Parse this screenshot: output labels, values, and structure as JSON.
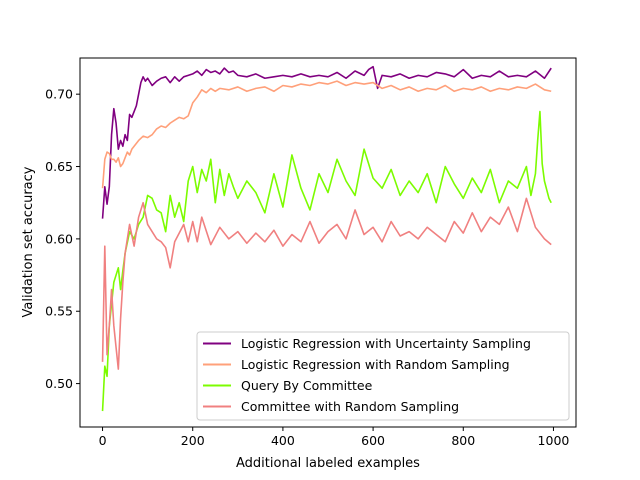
{
  "chart_data": {
    "type": "line",
    "xlabel": "Additional labeled examples",
    "ylabel": "Validation set accuracy",
    "xlim": [
      -50,
      1050
    ],
    "ylim": [
      0.47,
      0.725
    ],
    "xticks": [
      0,
      200,
      400,
      600,
      800,
      1000
    ],
    "yticks": [
      0.5,
      0.55,
      0.6,
      0.65,
      0.7
    ],
    "xtick_labels": [
      "0",
      "200",
      "400",
      "600",
      "800",
      "1000"
    ],
    "ytick_labels": [
      "0.50",
      "0.55",
      "0.60",
      "0.65",
      "0.70"
    ],
    "grid": false,
    "legend_position": "lower right",
    "series": [
      {
        "name": "Logistic Regression with Uncertainty Sampling",
        "color": "#800080",
        "x": [
          0,
          5,
          10,
          15,
          20,
          25,
          30,
          35,
          40,
          45,
          50,
          55,
          60,
          65,
          70,
          75,
          80,
          85,
          90,
          95,
          100,
          110,
          120,
          130,
          140,
          150,
          160,
          170,
          180,
          190,
          200,
          210,
          220,
          230,
          240,
          250,
          260,
          270,
          280,
          290,
          300,
          320,
          340,
          360,
          380,
          400,
          420,
          440,
          460,
          480,
          500,
          520,
          540,
          560,
          580,
          590,
          600,
          610,
          620,
          640,
          660,
          680,
          700,
          720,
          740,
          760,
          780,
          800,
          820,
          840,
          860,
          880,
          900,
          920,
          940,
          960,
          980,
          995
        ],
        "y": [
          0.614,
          0.636,
          0.624,
          0.636,
          0.672,
          0.69,
          0.68,
          0.662,
          0.668,
          0.664,
          0.672,
          0.668,
          0.686,
          0.684,
          0.688,
          0.692,
          0.7,
          0.708,
          0.712,
          0.709,
          0.711,
          0.706,
          0.709,
          0.711,
          0.712,
          0.708,
          0.712,
          0.709,
          0.712,
          0.713,
          0.714,
          0.716,
          0.713,
          0.717,
          0.715,
          0.716,
          0.714,
          0.718,
          0.715,
          0.716,
          0.713,
          0.712,
          0.714,
          0.711,
          0.712,
          0.713,
          0.712,
          0.714,
          0.712,
          0.713,
          0.712,
          0.715,
          0.711,
          0.716,
          0.713,
          0.717,
          0.719,
          0.704,
          0.713,
          0.712,
          0.714,
          0.711,
          0.713,
          0.712,
          0.715,
          0.714,
          0.712,
          0.717,
          0.711,
          0.713,
          0.712,
          0.716,
          0.712,
          0.713,
          0.712,
          0.716,
          0.711,
          0.718
        ]
      },
      {
        "name": "Logistic Regression with Random Sampling",
        "color": "#ffa07a",
        "x": [
          0,
          5,
          10,
          15,
          20,
          25,
          30,
          35,
          40,
          45,
          50,
          55,
          60,
          65,
          70,
          80,
          90,
          100,
          110,
          120,
          130,
          140,
          150,
          160,
          170,
          180,
          190,
          200,
          210,
          220,
          230,
          240,
          250,
          260,
          280,
          300,
          320,
          340,
          360,
          380,
          400,
          420,
          440,
          460,
          480,
          500,
          520,
          540,
          560,
          580,
          600,
          620,
          640,
          660,
          680,
          700,
          720,
          740,
          760,
          780,
          800,
          820,
          840,
          860,
          880,
          900,
          920,
          940,
          960,
          980,
          995
        ],
        "y": [
          0.635,
          0.655,
          0.66,
          0.659,
          0.655,
          0.655,
          0.653,
          0.656,
          0.65,
          0.652,
          0.656,
          0.66,
          0.658,
          0.662,
          0.664,
          0.668,
          0.671,
          0.67,
          0.672,
          0.676,
          0.678,
          0.677,
          0.68,
          0.682,
          0.684,
          0.683,
          0.685,
          0.694,
          0.698,
          0.703,
          0.701,
          0.704,
          0.702,
          0.704,
          0.703,
          0.705,
          0.702,
          0.704,
          0.705,
          0.702,
          0.706,
          0.705,
          0.707,
          0.706,
          0.708,
          0.707,
          0.709,
          0.706,
          0.708,
          0.707,
          0.708,
          0.704,
          0.706,
          0.703,
          0.705,
          0.702,
          0.704,
          0.703,
          0.706,
          0.702,
          0.704,
          0.703,
          0.705,
          0.702,
          0.704,
          0.703,
          0.705,
          0.704,
          0.707,
          0.703,
          0.702
        ]
      },
      {
        "name": "Query By Committee",
        "color": "#7cfc00",
        "x": [
          0,
          5,
          10,
          15,
          20,
          25,
          30,
          35,
          40,
          45,
          50,
          60,
          70,
          80,
          90,
          100,
          110,
          120,
          130,
          140,
          150,
          160,
          170,
          180,
          190,
          200,
          210,
          220,
          230,
          240,
          250,
          260,
          270,
          280,
          290,
          300,
          320,
          340,
          360,
          380,
          400,
          420,
          440,
          460,
          480,
          500,
          520,
          540,
          560,
          580,
          600,
          620,
          640,
          660,
          680,
          700,
          720,
          740,
          760,
          780,
          800,
          820,
          840,
          860,
          880,
          900,
          920,
          940,
          950,
          960,
          965,
          970,
          975,
          980,
          990,
          995
        ],
        "y": [
          0.481,
          0.512,
          0.505,
          0.54,
          0.555,
          0.57,
          0.575,
          0.58,
          0.565,
          0.578,
          0.59,
          0.605,
          0.6,
          0.61,
          0.615,
          0.63,
          0.628,
          0.62,
          0.618,
          0.605,
          0.63,
          0.615,
          0.625,
          0.612,
          0.64,
          0.65,
          0.632,
          0.648,
          0.64,
          0.655,
          0.625,
          0.648,
          0.63,
          0.645,
          0.636,
          0.628,
          0.64,
          0.632,
          0.618,
          0.645,
          0.622,
          0.658,
          0.635,
          0.62,
          0.645,
          0.632,
          0.655,
          0.64,
          0.63,
          0.662,
          0.642,
          0.635,
          0.648,
          0.63,
          0.64,
          0.632,
          0.645,
          0.625,
          0.65,
          0.638,
          0.628,
          0.642,
          0.632,
          0.648,
          0.625,
          0.64,
          0.635,
          0.65,
          0.63,
          0.645,
          0.668,
          0.688,
          0.652,
          0.64,
          0.628,
          0.625
        ]
      },
      {
        "name": "Committee with Random Sampling",
        "color": "#f08080",
        "x": [
          0,
          5,
          10,
          15,
          20,
          25,
          30,
          35,
          40,
          45,
          50,
          60,
          70,
          80,
          90,
          100,
          110,
          120,
          130,
          140,
          150,
          160,
          170,
          180,
          190,
          200,
          210,
          220,
          240,
          260,
          280,
          300,
          320,
          340,
          360,
          380,
          400,
          420,
          440,
          460,
          480,
          500,
          520,
          540,
          560,
          580,
          600,
          620,
          640,
          660,
          680,
          700,
          720,
          740,
          760,
          780,
          800,
          820,
          840,
          860,
          880,
          900,
          920,
          940,
          960,
          980,
          995
        ],
        "y": [
          0.515,
          0.595,
          0.52,
          0.54,
          0.565,
          0.54,
          0.525,
          0.51,
          0.545,
          0.57,
          0.59,
          0.61,
          0.595,
          0.615,
          0.625,
          0.61,
          0.605,
          0.6,
          0.598,
          0.594,
          0.58,
          0.598,
          0.604,
          0.61,
          0.598,
          0.612,
          0.598,
          0.615,
          0.596,
          0.608,
          0.6,
          0.605,
          0.597,
          0.604,
          0.598,
          0.606,
          0.595,
          0.603,
          0.598,
          0.612,
          0.597,
          0.605,
          0.61,
          0.6,
          0.62,
          0.603,
          0.608,
          0.598,
          0.612,
          0.602,
          0.605,
          0.6,
          0.608,
          0.603,
          0.598,
          0.612,
          0.604,
          0.618,
          0.605,
          0.615,
          0.61,
          0.622,
          0.605,
          0.628,
          0.608,
          0.6,
          0.596
        ]
      }
    ]
  }
}
